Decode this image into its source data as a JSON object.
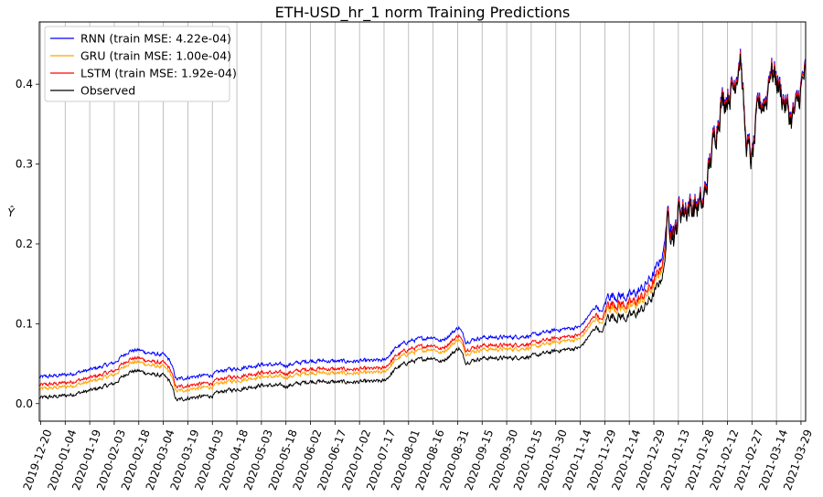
{
  "chart_data": {
    "type": "line",
    "title": "ETH-USD_hr_1 norm Training Predictions",
    "xlabel": "",
    "ylabel": "Ŷ",
    "ylim": [
      -0.022,
      0.478
    ],
    "yticks": [
      "0.0",
      "0.1",
      "0.2",
      "0.3",
      "0.4"
    ],
    "ytick_values": [
      0.0,
      0.1,
      0.2,
      0.3,
      0.4
    ],
    "x_tick_labels": [
      "2019-12-20",
      "2020-01-04",
      "2020-01-19",
      "2020-02-03",
      "2020-02-18",
      "2020-03-04",
      "2020-03-19",
      "2020-04-03",
      "2020-04-18",
      "2020-05-03",
      "2020-05-18",
      "2020-06-02",
      "2020-06-17",
      "2020-07-02",
      "2020-07-17",
      "2020-08-01",
      "2020-08-16",
      "2020-08-31",
      "2020-09-15",
      "2020-09-30",
      "2020-10-15",
      "2020-10-30",
      "2020-11-14",
      "2020-11-29",
      "2020-12-14",
      "2020-12-29",
      "2021-01-13",
      "2021-01-28",
      "2021-02-12",
      "2021-02-27",
      "2021-03-14",
      "2021-03-29"
    ],
    "grid": "vertical",
    "legend_position": "top-left",
    "series": [
      {
        "name": "RNN (train MSE: 4.22e-04)",
        "color": "#0000ff",
        "offset": 0.026
      },
      {
        "name": "GRU (train MSE: 1.00e-04)",
        "color": "#ffa500",
        "offset": 0.011
      },
      {
        "name": "LSTM (train MSE: 1.92e-04)",
        "color": "#ff0000",
        "offset": 0.016
      },
      {
        "name": "Observed",
        "color": "#000000",
        "offset": 0.0
      }
    ],
    "observed_keypoints": [
      [
        "2019-12-20",
        0.007
      ],
      [
        "2020-01-04",
        0.01
      ],
      [
        "2020-01-19",
        0.016
      ],
      [
        "2020-02-03",
        0.025
      ],
      [
        "2020-02-12",
        0.04
      ],
      [
        "2020-02-18",
        0.041
      ],
      [
        "2020-02-27",
        0.036
      ],
      [
        "2020-03-04",
        0.035
      ],
      [
        "2020-03-08",
        0.028
      ],
      [
        "2020-03-12",
        0.004
      ],
      [
        "2020-03-19",
        0.007
      ],
      [
        "2020-04-03",
        0.01
      ],
      [
        "2020-04-10",
        0.016
      ],
      [
        "2020-04-18",
        0.018
      ],
      [
        "2020-05-03",
        0.023
      ],
      [
        "2020-05-18",
        0.022
      ],
      [
        "2020-06-02",
        0.028
      ],
      [
        "2020-06-17",
        0.027
      ],
      [
        "2020-07-02",
        0.027
      ],
      [
        "2020-07-17",
        0.028
      ],
      [
        "2020-07-25",
        0.045
      ],
      [
        "2020-08-01",
        0.052
      ],
      [
        "2020-08-16",
        0.058
      ],
      [
        "2020-08-21",
        0.052
      ],
      [
        "2020-09-01",
        0.07
      ],
      [
        "2020-09-05",
        0.052
      ],
      [
        "2020-09-15",
        0.057
      ],
      [
        "2020-09-30",
        0.057
      ],
      [
        "2020-10-15",
        0.059
      ],
      [
        "2020-10-30",
        0.066
      ],
      [
        "2020-11-14",
        0.07
      ],
      [
        "2020-11-24",
        0.097
      ],
      [
        "2020-11-27",
        0.087
      ],
      [
        "2020-12-01",
        0.11
      ],
      [
        "2020-12-14",
        0.108
      ],
      [
        "2020-12-22",
        0.118
      ],
      [
        "2020-12-29",
        0.136
      ],
      [
        "2021-01-04",
        0.165
      ],
      [
        "2021-01-07",
        0.235
      ],
      [
        "2021-01-11",
        0.205
      ],
      [
        "2021-01-13",
        0.24
      ],
      [
        "2021-01-20",
        0.245
      ],
      [
        "2021-01-28",
        0.245
      ],
      [
        "2021-02-03",
        0.32
      ],
      [
        "2021-02-08",
        0.375
      ],
      [
        "2021-02-12",
        0.385
      ],
      [
        "2021-02-16",
        0.395
      ],
      [
        "2021-02-20",
        0.44
      ],
      [
        "2021-02-23",
        0.33
      ],
      [
        "2021-02-27",
        0.3
      ],
      [
        "2021-03-03",
        0.37
      ],
      [
        "2021-03-08",
        0.38
      ],
      [
        "2021-03-10",
        0.42
      ],
      [
        "2021-03-14",
        0.405
      ],
      [
        "2021-03-18",
        0.38
      ],
      [
        "2021-03-23",
        0.355
      ],
      [
        "2021-03-26",
        0.365
      ],
      [
        "2021-03-31",
        0.41
      ]
    ]
  }
}
